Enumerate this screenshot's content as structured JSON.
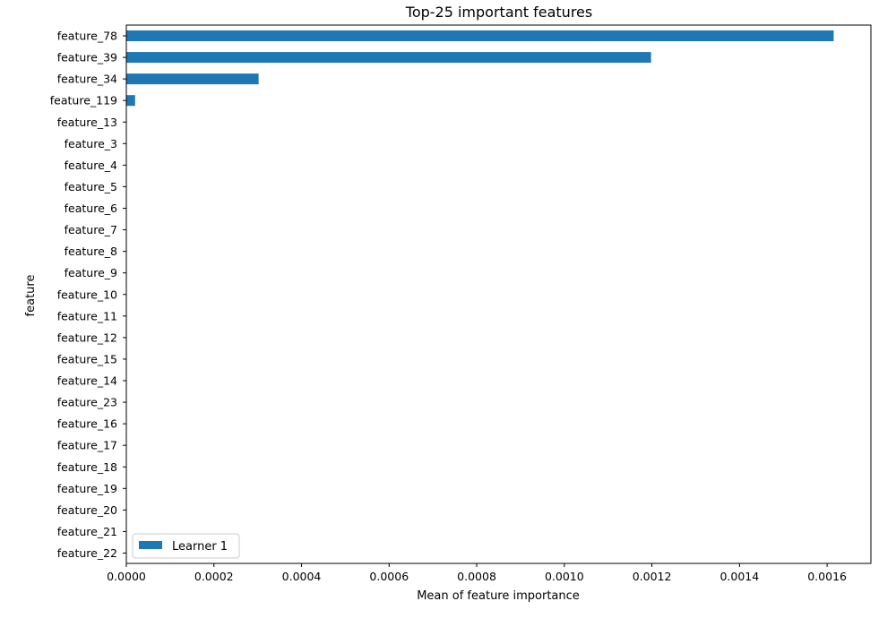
{
  "chart_data": {
    "type": "bar",
    "orientation": "horizontal",
    "title": "Top-25 important features",
    "xlabel": "Mean of feature importance",
    "ylabel": "feature",
    "categories": [
      "feature_78",
      "feature_39",
      "feature_34",
      "feature_119",
      "feature_13",
      "feature_3",
      "feature_4",
      "feature_5",
      "feature_6",
      "feature_7",
      "feature_8",
      "feature_9",
      "feature_10",
      "feature_11",
      "feature_12",
      "feature_15",
      "feature_14",
      "feature_23",
      "feature_16",
      "feature_17",
      "feature_18",
      "feature_19",
      "feature_20",
      "feature_21",
      "feature_22"
    ],
    "series": [
      {
        "name": "Learner 1",
        "color": "#1f77b4",
        "values": [
          0.001615,
          0.001198,
          0.000302,
          2e-05,
          0,
          0,
          0,
          0,
          0,
          0,
          0,
          0,
          0,
          0,
          0,
          0,
          0,
          0,
          0,
          0,
          0,
          0,
          0,
          0,
          0
        ]
      }
    ],
    "xlim": [
      0,
      0.0017
    ],
    "xticks": [
      "0.0000",
      "0.0002",
      "0.0004",
      "0.0006",
      "0.0008",
      "0.0010",
      "0.0012",
      "0.0014",
      "0.0016"
    ],
    "grid": false,
    "legend_position": "lower-left"
  }
}
